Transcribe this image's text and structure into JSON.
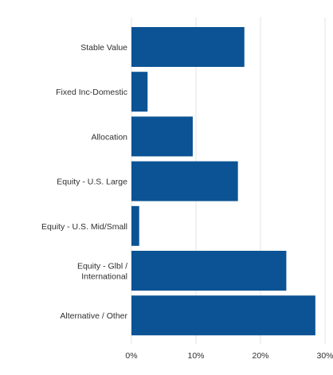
{
  "chart_data": {
    "type": "bar",
    "orientation": "horizontal",
    "categories": [
      [
        "Stable Value"
      ],
      [
        "Fixed Inc-Domestic"
      ],
      [
        "Allocation"
      ],
      [
        "Equity - U.S. Large"
      ],
      [
        "Equity - U.S. Mid/Small"
      ],
      [
        "Equity - Glbl /",
        "International"
      ],
      [
        "Alternative / Other"
      ]
    ],
    "values": [
      17.5,
      2.5,
      9.5,
      16.5,
      1.2,
      24,
      28.5
    ],
    "xlim": [
      0,
      30
    ],
    "xticks": [
      "0%",
      "10%",
      "20%",
      "30%"
    ],
    "xtick_values": [
      0,
      10,
      20,
      30
    ],
    "grid": true,
    "title": "",
    "xlabel": "",
    "ylabel": "",
    "colors": {
      "bar": "#0b5394",
      "grid": "#e3e3e3",
      "text": "#2f2f2f"
    }
  }
}
